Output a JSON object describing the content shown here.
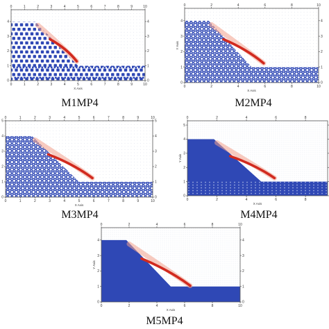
{
  "figure": {
    "panels": [
      {
        "caption": "M1MP4",
        "x_label": "X Axis",
        "y_label": "",
        "x_ticks": [
          "0",
          "1",
          "2",
          "3",
          "4",
          "5",
          "6",
          "7",
          "8",
          "9",
          "10"
        ],
        "y_ticks": [
          "0",
          "1",
          "2",
          "3",
          "4"
        ],
        "pattern": "coarse-dots",
        "colors": {
          "body": "#2f48b5",
          "failure_red": "#d12a1f",
          "failure_light": "#f2a08c",
          "frame": "#555555"
        }
      },
      {
        "caption": "M2MP4",
        "x_label": "X Axis",
        "y_label": "Y Axis",
        "x_ticks": [
          "0",
          "2",
          "4",
          "6",
          "8",
          "10"
        ],
        "y_ticks": [
          "0",
          "1",
          "2",
          "3",
          "4"
        ],
        "pattern": "hex-rings",
        "colors": {
          "body": "#2f48b5",
          "failure_red": "#d12a1f",
          "failure_light": "#f2a08c",
          "frame": "#555555"
        }
      },
      {
        "caption": "M3MP4",
        "x_label": "X Axis",
        "y_label": "",
        "x_ticks": [
          "0",
          "1",
          "2",
          "3",
          "4",
          "5",
          "6",
          "7",
          "8",
          "9",
          "10"
        ],
        "y_ticks": [
          "0",
          "1",
          "2",
          "3",
          "4",
          "5"
        ],
        "pattern": "hex-rings",
        "colors": {
          "body": "#2f48b5",
          "failure_red": "#d12a1f",
          "failure_light": "#f2a08c",
          "frame": "#555555"
        }
      },
      {
        "caption": "M4MP4",
        "x_label": "X Axis",
        "y_label": "Y Axis",
        "x_ticks": [
          "0",
          "2",
          "4",
          "6",
          "8"
        ],
        "y_ticks": [
          "0",
          "1",
          "2",
          "3",
          "4",
          "5"
        ],
        "pattern": "dense",
        "colors": {
          "body": "#2f48b5",
          "failure_red": "#d12a1f",
          "failure_light": "#f2a08c",
          "frame": "#555555"
        }
      },
      {
        "caption": "M5MP4",
        "x_label": "X Axis",
        "y_label": "Y Axis",
        "x_ticks": [
          "0",
          "2",
          "4",
          "6",
          "8",
          "10"
        ],
        "y_ticks": [
          "0",
          "1",
          "2",
          "3",
          "4"
        ],
        "pattern": "solid",
        "colors": {
          "body": "#2f48b5",
          "failure_red": "#d12a1f",
          "failure_light": "#f2a08c",
          "frame": "#555555"
        }
      }
    ]
  }
}
